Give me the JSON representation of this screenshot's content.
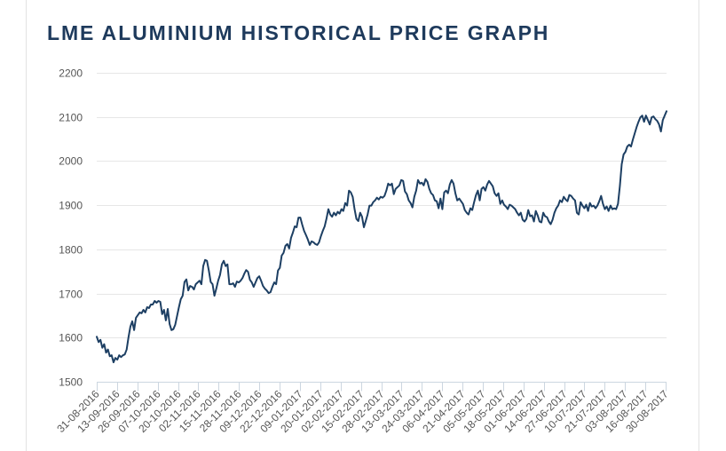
{
  "page": {
    "title": "LME ALUMINIUM HISTORICAL PRICE GRAPH"
  },
  "colors": {
    "title": "#1e3a5c",
    "line": "#1d3f63"
  },
  "chart_data": {
    "type": "line",
    "title": "LME ALUMINIUM HISTORICAL PRICE GRAPH",
    "xlabel": "",
    "ylabel": "",
    "ylim": [
      1500,
      2200
    ],
    "yticks": [
      1500,
      1600,
      1700,
      1800,
      1900,
      2000,
      2100,
      2200
    ],
    "grid": true,
    "legend": "none",
    "x_start": "31-08-2016",
    "x_end": "30-08-2017",
    "xtick_labels": [
      "31-08-2016",
      "13-09-2016",
      "26-09-2016",
      "07-10-2016",
      "20-10-2016",
      "02-11-2016",
      "15-11-2016",
      "28-11-2016",
      "09-12-2016",
      "22-12-2016",
      "09-01-2017",
      "20-01-2017",
      "02-02-2017",
      "15-02-2017",
      "28-02-2017",
      "13-03-2017",
      "24-03-2017",
      "06-04-2017",
      "21-04-2017",
      "05-05-2017",
      "18-05-2017",
      "01-06-2017",
      "14-06-2017",
      "27-06-2017",
      "10-07-2017",
      "21-07-2017",
      "03-08-2017",
      "16-08-2017",
      "30-08-2017"
    ],
    "series": [
      {
        "name": "LME Aluminium",
        "values": [
          1602,
          1590,
          1595,
          1577,
          1585,
          1566,
          1573,
          1558,
          1560,
          1544,
          1554,
          1550,
          1560,
          1556,
          1560,
          1562,
          1573,
          1601,
          1625,
          1637,
          1617,
          1645,
          1651,
          1657,
          1655,
          1663,
          1657,
          1669,
          1667,
          1675,
          1675,
          1683,
          1679,
          1683,
          1681,
          1653,
          1663,
          1639,
          1665,
          1631,
          1617,
          1619,
          1629,
          1649,
          1669,
          1687,
          1695,
          1726,
          1732,
          1707,
          1717,
          1715,
          1709,
          1721,
          1725,
          1729,
          1721,
          1762,
          1776,
          1774,
          1752,
          1726,
          1721,
          1695,
          1711,
          1729,
          1742,
          1766,
          1774,
          1762,
          1766,
          1721,
          1721,
          1723,
          1715,
          1727,
          1725,
          1729,
          1735,
          1745,
          1753,
          1749,
          1731,
          1725,
          1715,
          1725,
          1735,
          1739,
          1729,
          1717,
          1711,
          1707,
          1701,
          1703,
          1715,
          1725,
          1721,
          1752,
          1758,
          1786,
          1792,
          1808,
          1812,
          1802,
          1826,
          1838,
          1852,
          1850,
          1872,
          1872,
          1856,
          1842,
          1832,
          1822,
          1810,
          1818,
          1816,
          1812,
          1810,
          1816,
          1830,
          1842,
          1852,
          1870,
          1891,
          1879,
          1874,
          1883,
          1877,
          1885,
          1881,
          1891,
          1887,
          1905,
          1899,
          1933,
          1929,
          1919,
          1891,
          1869,
          1864,
          1883,
          1874,
          1850,
          1864,
          1879,
          1899,
          1899,
          1907,
          1911,
          1917,
          1913,
          1919,
          1917,
          1921,
          1933,
          1949,
          1945,
          1949,
          1925,
          1937,
          1941,
          1945,
          1957,
          1955,
          1931,
          1925,
          1911,
          1905,
          1895,
          1919,
          1933,
          1957,
          1949,
          1951,
          1945,
          1959,
          1953,
          1937,
          1927,
          1923,
          1911,
          1909,
          1893,
          1915,
          1891,
          1929,
          1933,
          1927,
          1947,
          1957,
          1949,
          1927,
          1911,
          1915,
          1909,
          1903,
          1889,
          1883,
          1879,
          1893,
          1889,
          1907,
          1923,
          1933,
          1911,
          1937,
          1941,
          1933,
          1947,
          1955,
          1949,
          1943,
          1927,
          1921,
          1927,
          1903,
          1911,
          1901,
          1897,
          1891,
          1901,
          1899,
          1895,
          1891,
          1883,
          1877,
          1883,
          1867,
          1863,
          1869,
          1889,
          1875,
          1877,
          1863,
          1887,
          1877,
          1863,
          1861,
          1883,
          1875,
          1873,
          1863,
          1857,
          1867,
          1883,
          1893,
          1899,
          1911,
          1907,
          1919,
          1913,
          1909,
          1923,
          1921,
          1915,
          1911,
          1883,
          1879,
          1907,
          1899,
          1893,
          1901,
          1887,
          1905,
          1897,
          1899,
          1893,
          1899,
          1909,
          1921,
          1903,
          1891,
          1897,
          1887,
          1899,
          1891,
          1893,
          1891,
          1903,
          1943,
          1993,
          2015,
          2021,
          2033,
          2037,
          2033,
          2049,
          2063,
          2077,
          2089,
          2099,
          2103,
          2089,
          2103,
          2093,
          2083,
          2099,
          2101,
          2095,
          2091,
          2083,
          2067,
          2093,
          2103,
          2113
        ]
      }
    ]
  }
}
